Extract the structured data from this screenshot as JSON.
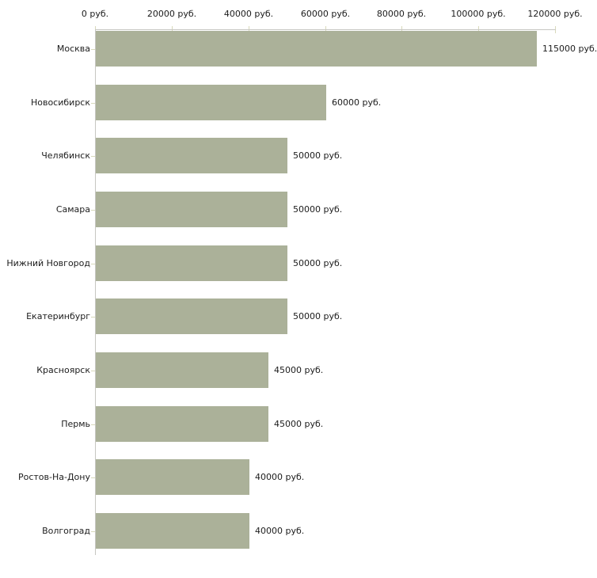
{
  "chart_data": {
    "type": "bar",
    "orientation": "horizontal",
    "title": "",
    "xlabel": "",
    "ylabel": "",
    "unit": "руб.",
    "xlim": [
      0,
      120000
    ],
    "grid": false,
    "legend": null,
    "categories": [
      "Москва",
      "Новосибирск",
      "Челябинск",
      "Самара",
      "Нижний Новгород",
      "Екатеринбург",
      "Красноярск",
      "Пермь",
      "Ростов-На-Дону",
      "Волгоград"
    ],
    "values": [
      115000,
      60000,
      50000,
      50000,
      50000,
      50000,
      45000,
      45000,
      40000,
      40000
    ],
    "value_labels": [
      "115000 руб.",
      "60000 руб.",
      "50000 руб.",
      "50000 руб.",
      "50000 руб.",
      "50000 руб.",
      "45000 руб.",
      "45000 руб.",
      "40000 руб.",
      "40000 руб."
    ],
    "x_tick_values": [
      0,
      20000,
      40000,
      60000,
      80000,
      100000,
      120000
    ],
    "x_tick_labels": [
      "0 руб.",
      "20000 руб.",
      "40000 руб.",
      "60000 руб.",
      "80000 руб.",
      "100000 руб.",
      "120000 руб."
    ],
    "colors": {
      "bar": "#abb199",
      "axis": "#c7c7c2",
      "tick_mark": "#d8d9bb",
      "text": "#1c1c1c",
      "background": "#ffffff"
    }
  }
}
